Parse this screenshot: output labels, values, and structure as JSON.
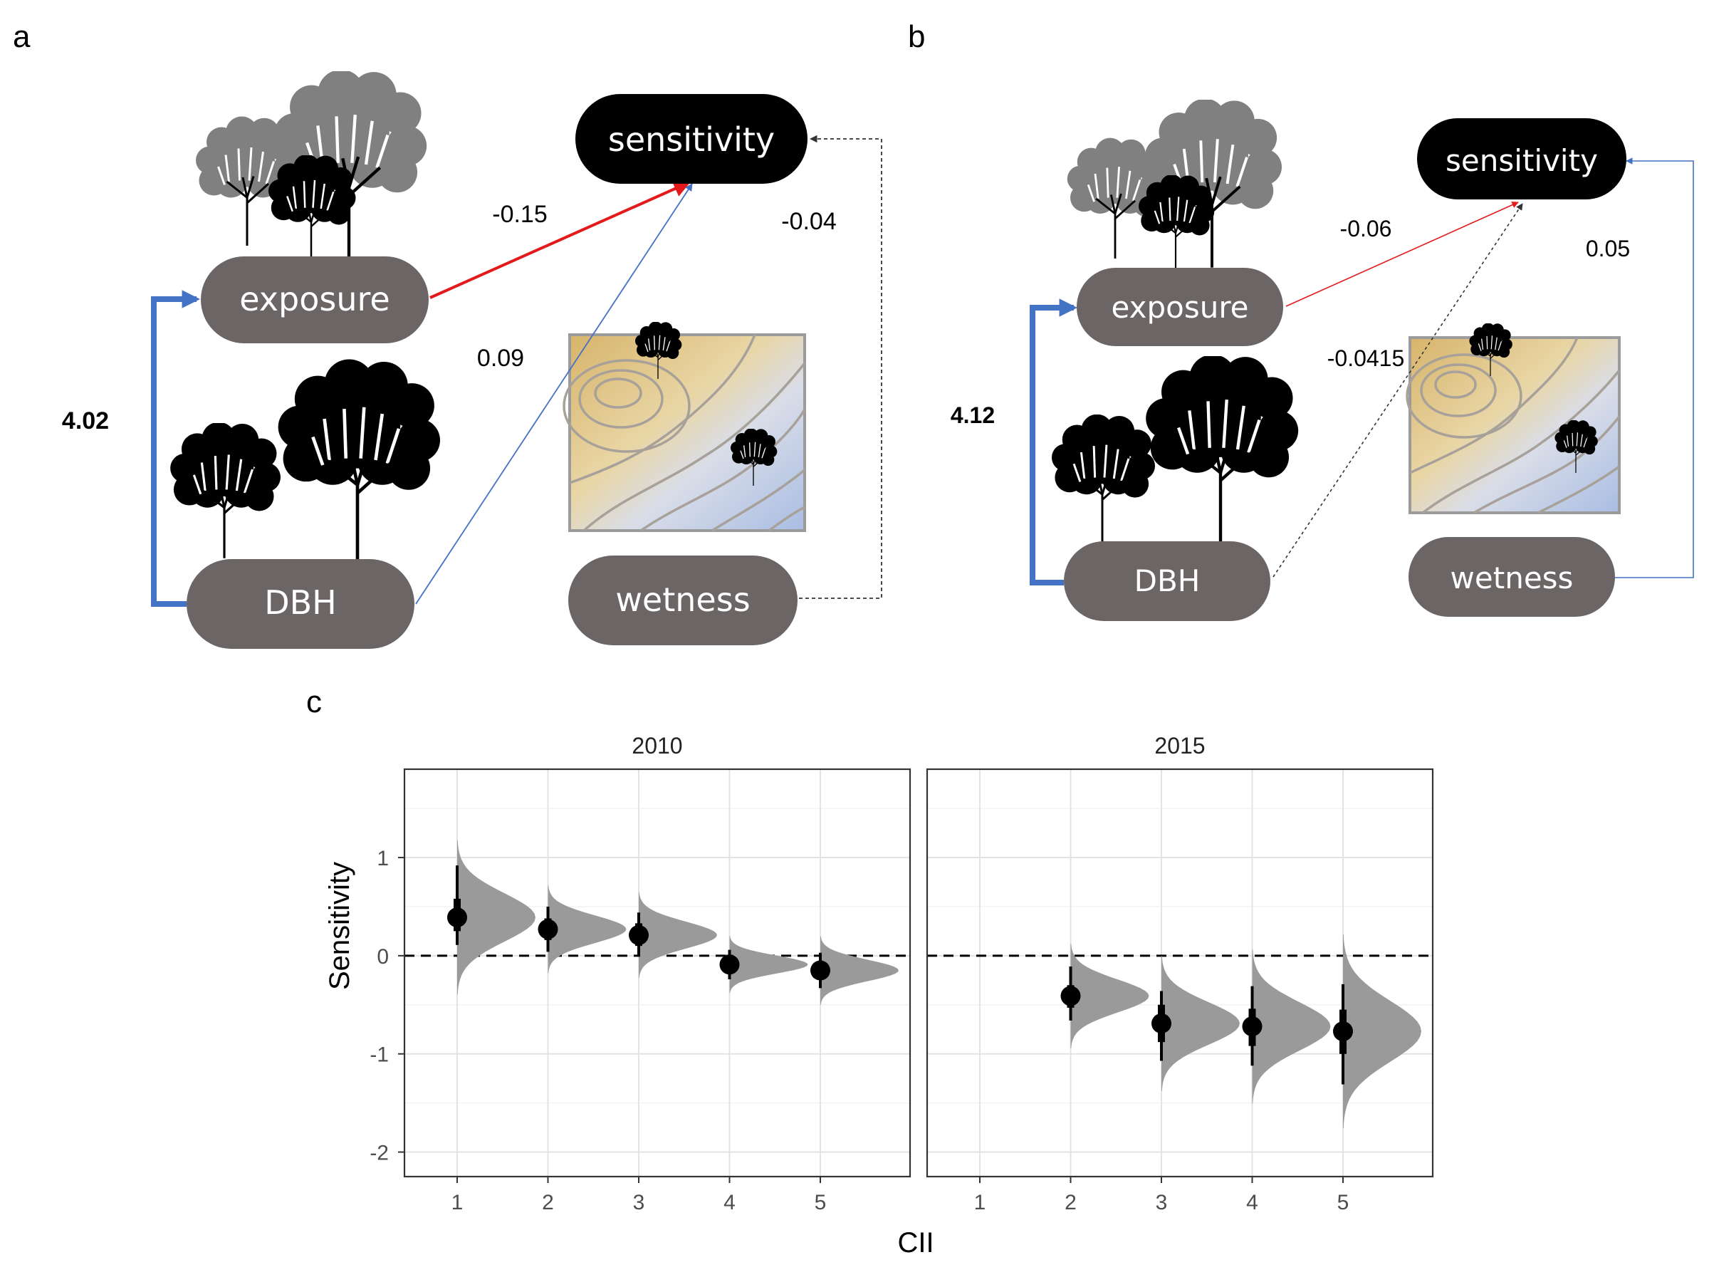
{
  "panel_labels": {
    "a": "a",
    "b": "b",
    "c": "c"
  },
  "path_diagrams": [
    {
      "panel": "a",
      "nodes": {
        "sensitivity": "sensitivity",
        "exposure": "exposure",
        "dbh": "DBH",
        "wetness": "wetness"
      },
      "coefficients": {
        "exposure_to_sensitivity": "-0.15",
        "dbh_to_sensitivity": "0.09",
        "wetness_to_sensitivity": "-0.04",
        "dbh_to_exposure": "4.02"
      }
    },
    {
      "panel": "b",
      "nodes": {
        "sensitivity": "sensitivity",
        "exposure": "exposure",
        "dbh": "DBH",
        "wetness": "wetness"
      },
      "coefficients": {
        "exposure_to_sensitivity": "-0.06",
        "dbh_to_sensitivity": "-0.0415",
        "wetness_to_sensitivity": "0.05",
        "dbh_to_exposure": "4.12"
      }
    }
  ],
  "colors": {
    "negative_path": "#e31a1c",
    "positive_path": "#4472c4",
    "nonsignificant_path": "#333333",
    "node_fill": "#6b6665",
    "response_fill": "#000000",
    "density_fill": "#9a9a9a"
  },
  "chart_data": {
    "type": "scatter",
    "xlabel": "CII",
    "ylabel": "Sensitivity",
    "ylim": [
      -2.25,
      1.9
    ],
    "y_ticks": [
      "1",
      "0",
      "-1",
      "-2"
    ],
    "x_ticks": [
      "1",
      "2",
      "3",
      "4",
      "5"
    ],
    "reference_line_y": 0,
    "facets": [
      {
        "title": "2010",
        "x": [
          1,
          2,
          3,
          4,
          5
        ],
        "mean": [
          0.39,
          0.27,
          0.21,
          -0.09,
          -0.15
        ],
        "inner_interval": [
          [
            0.25,
            0.58
          ],
          [
            0.16,
            0.38
          ],
          [
            0.1,
            0.33
          ],
          [
            -0.16,
            0.01
          ],
          [
            -0.24,
            -0.06
          ]
        ],
        "outer_interval": [
          [
            0.11,
            0.92
          ],
          [
            0.04,
            0.5
          ],
          [
            -0.01,
            0.44
          ],
          [
            -0.24,
            0.06
          ],
          [
            -0.33,
            0.03
          ]
        ]
      },
      {
        "title": "2015",
        "x": [
          2,
          3,
          4,
          5
        ],
        "mean": [
          -0.41,
          -0.69,
          -0.72,
          -0.77
        ],
        "inner_interval": [
          [
            -0.53,
            -0.3
          ],
          [
            -0.88,
            -0.5
          ],
          [
            -0.92,
            -0.54
          ],
          [
            -1.0,
            -0.55
          ]
        ],
        "outer_interval": [
          [
            -0.66,
            -0.11
          ],
          [
            -1.07,
            -0.36
          ],
          [
            -1.12,
            -0.31
          ],
          [
            -1.31,
            -0.29
          ]
        ]
      }
    ]
  }
}
